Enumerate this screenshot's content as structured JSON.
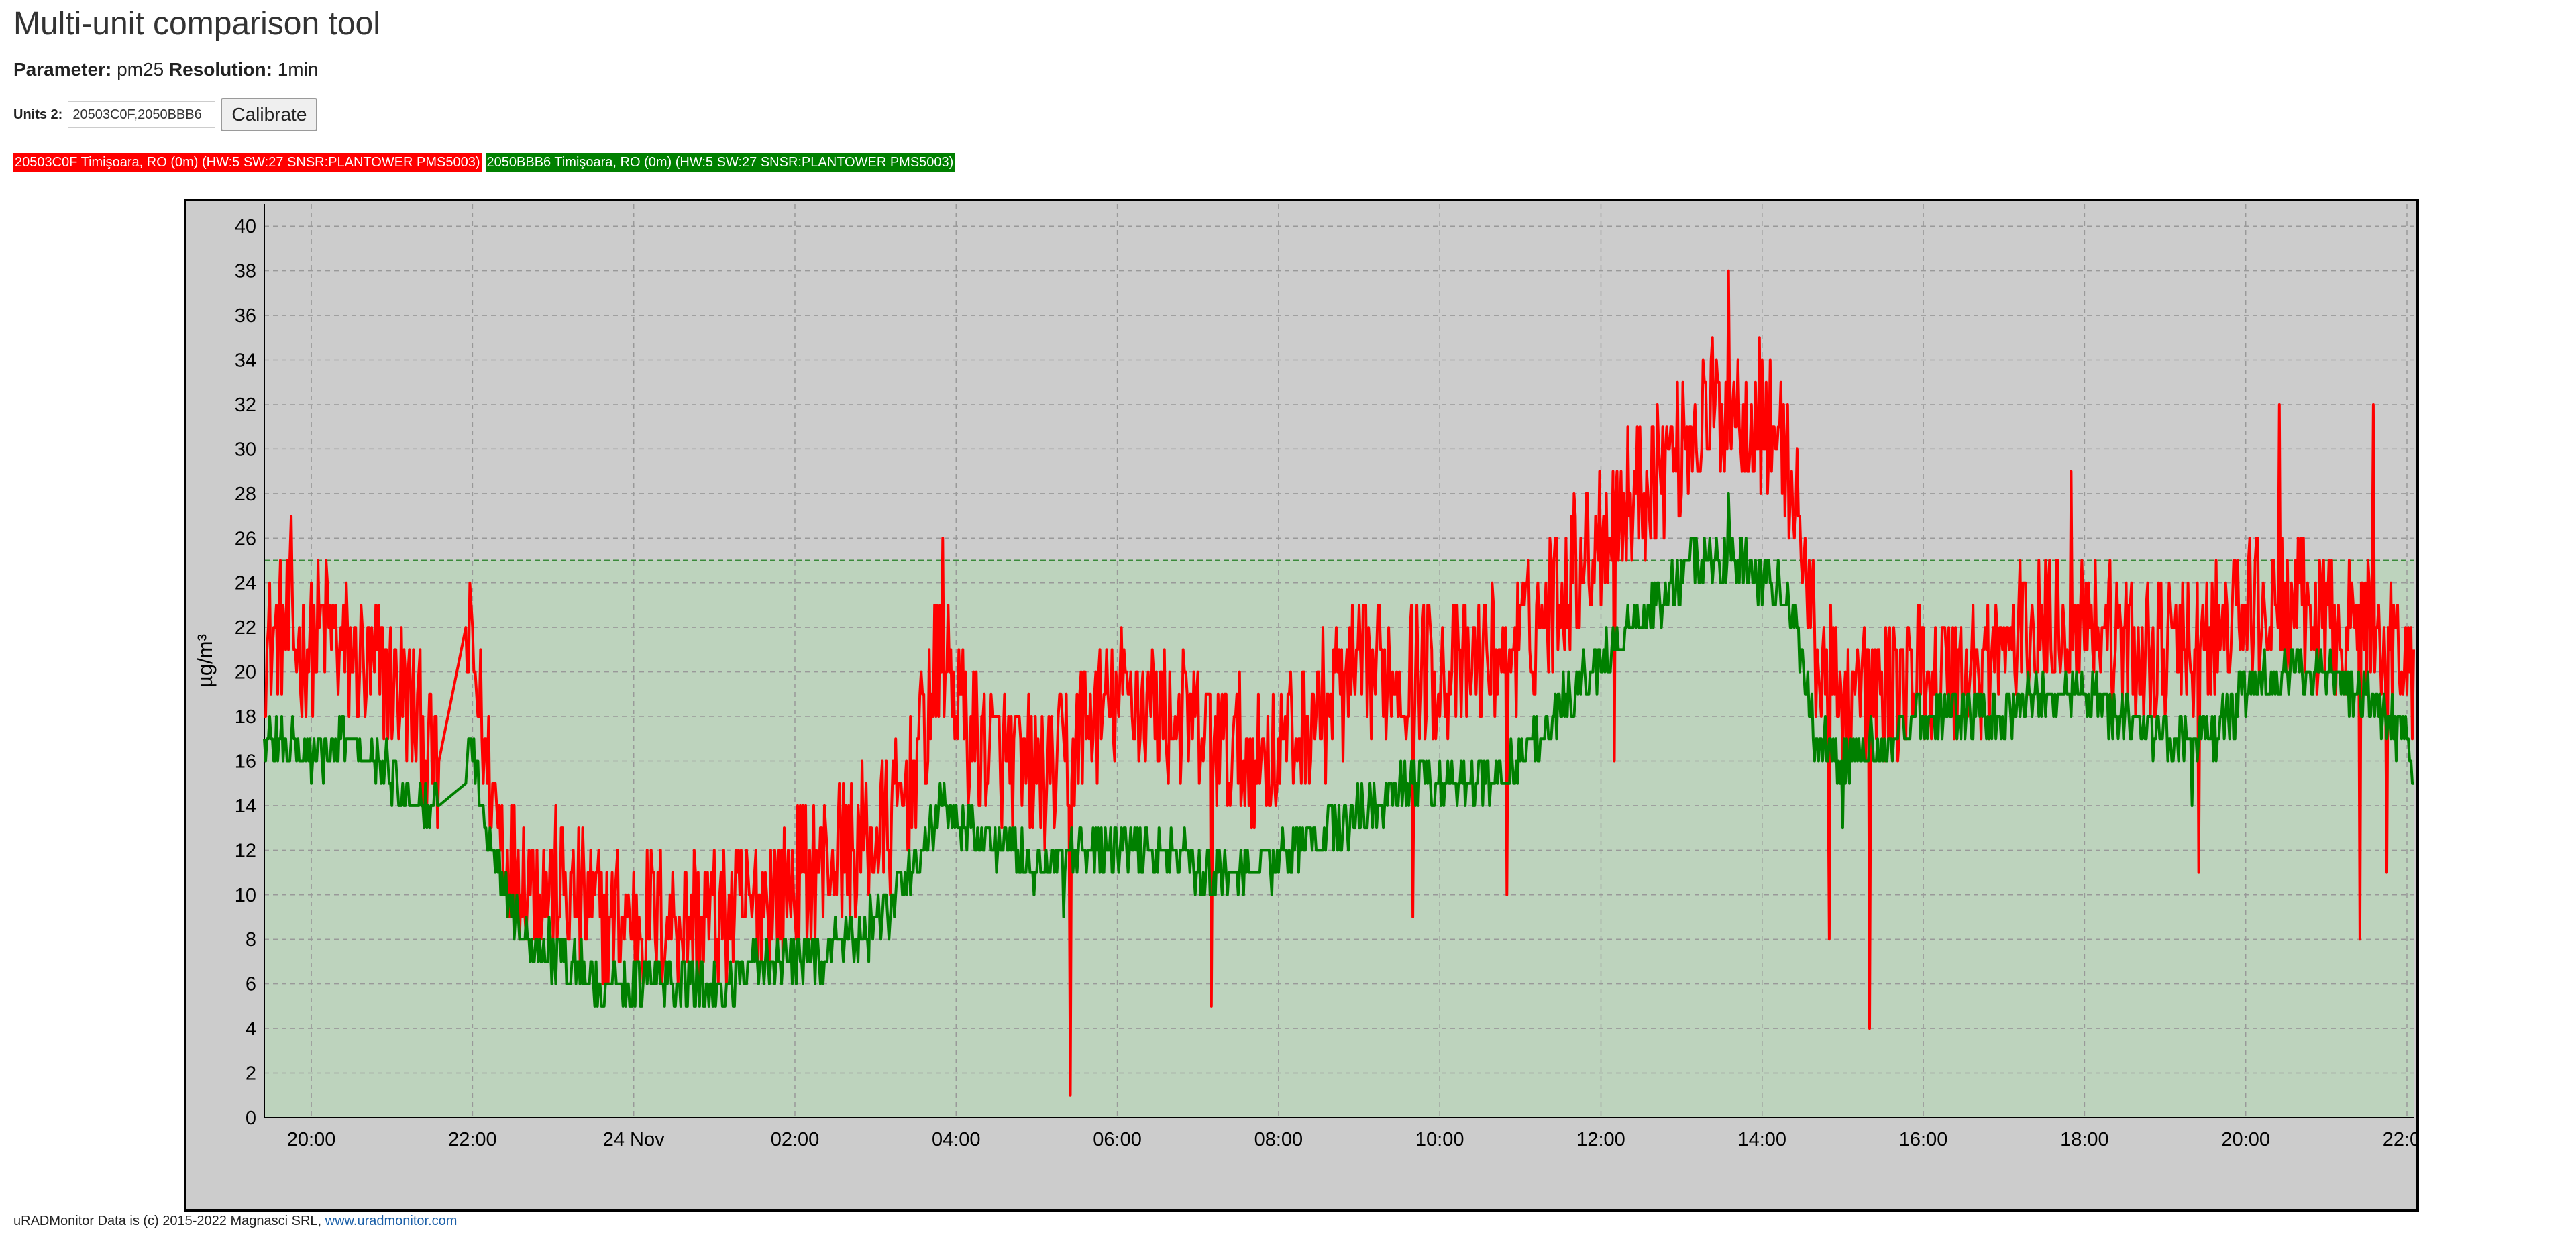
{
  "page": {
    "title": "Multi-unit comparison tool",
    "parameter_label": "Parameter:",
    "parameter_value": "pm25",
    "resolution_label": "Resolution:",
    "resolution_value": "1min",
    "units_label": "Units 2:",
    "units_value": "20503C0F,2050BBB6",
    "calibrate_label": "Calibrate"
  },
  "legend": [
    {
      "label": "20503C0F Timişoara, RO (0m) (HW:5 SW:27 SNSR:PLANTOWER PMS5003)",
      "color": "#ff0000"
    },
    {
      "label": "2050BBB6 Timişoara, RO (0m) (HW:5 SW:27 SNSR:PLANTOWER PMS5003)",
      "color": "#008000"
    }
  ],
  "footer": {
    "text": "uRADMonitor Data is (c) 2015-2022 Magnasci SRL,",
    "link_text": "www.uradmonitor.com"
  },
  "chart_data": {
    "type": "line",
    "ylabel": "µg/m³",
    "ylim": [
      0,
      41
    ],
    "xlim": [
      "2022-11-23 19:25",
      "2022-11-24 22:05"
    ],
    "y_ticks": [
      0,
      2,
      4,
      6,
      8,
      10,
      12,
      14,
      16,
      18,
      20,
      22,
      24,
      26,
      28,
      30,
      32,
      34,
      36,
      38,
      40
    ],
    "x_ticks": [
      {
        "time": "2022-11-23 20:00",
        "label": "20:00"
      },
      {
        "time": "2022-11-23 22:00",
        "label": "22:00"
      },
      {
        "time": "2022-11-24 00:00",
        "label": "24 Nov"
      },
      {
        "time": "2022-11-24 02:00",
        "label": "02:00"
      },
      {
        "time": "2022-11-24 04:00",
        "label": "04:00"
      },
      {
        "time": "2022-11-24 06:00",
        "label": "06:00"
      },
      {
        "time": "2022-11-24 08:00",
        "label": "08:00"
      },
      {
        "time": "2022-11-24 10:00",
        "label": "10:00"
      },
      {
        "time": "2022-11-24 12:00",
        "label": "12:00"
      },
      {
        "time": "2022-11-24 14:00",
        "label": "14:00"
      },
      {
        "time": "2022-11-24 16:00",
        "label": "16:00"
      },
      {
        "time": "2022-11-24 18:00",
        "label": "18:00"
      },
      {
        "time": "2022-11-24 20:00",
        "label": "20:00"
      },
      {
        "time": "2022-11-24 22:00",
        "label": "22:00"
      }
    ],
    "grid": true,
    "threshold_band": {
      "from": 0,
      "to": 25,
      "color": "#bdd3bd"
    },
    "series": [
      {
        "name": "20503C0F Timişoara, RO (0m) (HW:5 SW:27 SNSR:PLANTOWER PMS5003)",
        "color": "#ff0000",
        "points": [
          [
            "2022-11-23 19:25",
            21
          ],
          [
            "2022-11-23 19:40",
            22
          ],
          [
            "2022-11-23 19:55",
            21
          ],
          [
            "2022-11-23 20:10",
            22
          ],
          [
            "2022-11-23 20:25",
            21
          ],
          [
            "2022-11-23 20:40",
            20
          ],
          [
            "2022-11-23 20:55",
            20
          ],
          [
            "2022-11-23 21:10",
            19
          ],
          [
            "2022-11-23 21:25",
            17
          ],
          [
            "2022-11-23 21:35",
            15
          ],
          [
            "2022-11-23 21:55",
            21
          ],
          [
            "2022-11-23 22:00",
            21
          ],
          [
            "2022-11-23 22:10",
            16
          ],
          [
            "2022-11-23 22:25",
            12
          ],
          [
            "2022-11-23 22:45",
            11
          ],
          [
            "2022-11-23 23:10",
            10
          ],
          [
            "2022-11-23 23:40",
            9
          ],
          [
            "2022-11-24 00:10",
            9
          ],
          [
            "2022-11-24 00:40",
            9
          ],
          [
            "2022-11-24 01:10",
            9
          ],
          [
            "2022-11-24 01:40",
            10
          ],
          [
            "2022-11-24 02:10",
            11
          ],
          [
            "2022-11-24 02:40",
            12
          ],
          [
            "2022-11-24 03:10",
            13
          ],
          [
            "2022-11-24 03:25",
            15
          ],
          [
            "2022-11-24 03:50",
            21
          ],
          [
            "2022-11-24 04:10",
            17
          ],
          [
            "2022-11-24 04:40",
            16
          ],
          [
            "2022-11-24 05:10",
            15
          ],
          [
            "2022-11-24 05:40",
            18
          ],
          [
            "2022-11-24 06:10",
            19
          ],
          [
            "2022-11-24 06:40",
            18
          ],
          [
            "2022-11-24 07:10",
            17
          ],
          [
            "2022-11-24 07:40",
            16
          ],
          [
            "2022-11-24 08:10",
            17
          ],
          [
            "2022-11-24 08:40",
            19
          ],
          [
            "2022-11-24 09:10",
            20
          ],
          [
            "2022-11-24 09:40",
            20
          ],
          [
            "2022-11-24 10:10",
            20
          ],
          [
            "2022-11-24 10:40",
            21
          ],
          [
            "2022-11-24 11:10",
            22
          ],
          [
            "2022-11-24 11:40",
            25
          ],
          [
            "2022-11-24 12:10",
            27
          ],
          [
            "2022-11-24 12:40",
            29
          ],
          [
            "2022-11-24 13:10",
            31
          ],
          [
            "2022-11-24 13:40",
            32
          ],
          [
            "2022-11-24 14:10",
            31
          ],
          [
            "2022-11-24 14:25",
            28
          ],
          [
            "2022-11-24 14:40",
            21
          ],
          [
            "2022-11-24 15:00",
            19
          ],
          [
            "2022-11-24 15:30",
            19
          ],
          [
            "2022-11-24 16:00",
            20
          ],
          [
            "2022-11-24 16:30",
            20
          ],
          [
            "2022-11-24 17:00",
            21
          ],
          [
            "2022-11-24 17:30",
            22
          ],
          [
            "2022-11-24 18:00",
            23
          ],
          [
            "2022-11-24 18:30",
            21
          ],
          [
            "2022-11-24 19:00",
            21
          ],
          [
            "2022-11-24 19:30",
            21
          ],
          [
            "2022-11-24 20:00",
            23
          ],
          [
            "2022-11-24 20:30",
            23
          ],
          [
            "2022-11-24 21:00",
            22
          ],
          [
            "2022-11-24 21:30",
            22
          ],
          [
            "2022-11-24 22:00",
            21
          ],
          [
            "2022-11-24 22:05",
            19
          ]
        ],
        "notable_values": [
          [
            "2022-11-23 19:45",
            27
          ],
          [
            "2022-11-24 03:50",
            26
          ],
          [
            "2022-11-24 05:25",
            1
          ],
          [
            "2022-11-24 07:10",
            5
          ],
          [
            "2022-11-24 09:40",
            9
          ],
          [
            "2022-11-24 10:50",
            10
          ],
          [
            "2022-11-24 12:10",
            16
          ],
          [
            "2022-11-24 13:35",
            38
          ],
          [
            "2022-11-24 14:50",
            8
          ],
          [
            "2022-11-24 15:20",
            4
          ],
          [
            "2022-11-24 17:50",
            29
          ],
          [
            "2022-11-24 19:25",
            11
          ],
          [
            "2022-11-24 20:25",
            32
          ],
          [
            "2022-11-24 21:25",
            8
          ],
          [
            "2022-11-24 21:35",
            32
          ],
          [
            "2022-11-24 21:45",
            11
          ]
        ]
      },
      {
        "name": "2050BBB6 Timişoara, RO (0m) (HW:5 SW:27 SNSR:PLANTOWER PMS5003)",
        "color": "#008000",
        "points": [
          [
            "2022-11-23 19:25",
            17
          ],
          [
            "2022-11-23 19:45",
            17
          ],
          [
            "2022-11-23 20:05",
            16
          ],
          [
            "2022-11-23 20:25",
            17
          ],
          [
            "2022-11-23 20:45",
            16
          ],
          [
            "2022-11-23 21:05",
            15
          ],
          [
            "2022-11-23 21:25",
            14
          ],
          [
            "2022-11-23 21:35",
            14
          ],
          [
            "2022-11-23 21:55",
            16
          ],
          [
            "2022-11-23 22:00",
            17
          ],
          [
            "2022-11-23 22:10",
            13
          ],
          [
            "2022-11-23 22:25",
            10
          ],
          [
            "2022-11-23 22:45",
            8
          ],
          [
            "2022-11-23 23:10",
            7
          ],
          [
            "2022-11-23 23:40",
            6
          ],
          [
            "2022-11-24 00:10",
            6
          ],
          [
            "2022-11-24 00:40",
            6
          ],
          [
            "2022-11-24 01:10",
            6
          ],
          [
            "2022-11-24 01:40",
            7
          ],
          [
            "2022-11-24 02:10",
            7
          ],
          [
            "2022-11-24 02:40",
            8
          ],
          [
            "2022-11-24 03:10",
            9
          ],
          [
            "2022-11-24 03:25",
            11
          ],
          [
            "2022-11-24 03:50",
            14
          ],
          [
            "2022-11-24 04:10",
            13
          ],
          [
            "2022-11-24 04:40",
            12
          ],
          [
            "2022-11-24 05:10",
            11
          ],
          [
            "2022-11-24 05:40",
            12
          ],
          [
            "2022-11-24 06:10",
            12
          ],
          [
            "2022-11-24 06:40",
            12
          ],
          [
            "2022-11-24 07:10",
            11
          ],
          [
            "2022-11-24 07:40",
            11
          ],
          [
            "2022-11-24 08:10",
            12
          ],
          [
            "2022-11-24 08:40",
            13
          ],
          [
            "2022-11-24 09:10",
            14
          ],
          [
            "2022-11-24 09:40",
            15
          ],
          [
            "2022-11-24 10:10",
            15
          ],
          [
            "2022-11-24 10:40",
            15
          ],
          [
            "2022-11-24 11:10",
            17
          ],
          [
            "2022-11-24 11:40",
            19
          ],
          [
            "2022-11-24 12:10",
            21
          ],
          [
            "2022-11-24 12:40",
            23
          ],
          [
            "2022-11-24 13:10",
            25
          ],
          [
            "2022-11-24 13:40",
            25
          ],
          [
            "2022-11-24 14:10",
            24
          ],
          [
            "2022-11-24 14:25",
            22
          ],
          [
            "2022-11-24 14:40",
            17
          ],
          [
            "2022-11-24 15:00",
            16
          ],
          [
            "2022-11-24 15:30",
            17
          ],
          [
            "2022-11-24 16:00",
            18
          ],
          [
            "2022-11-24 16:30",
            18
          ],
          [
            "2022-11-24 17:00",
            18
          ],
          [
            "2022-11-24 17:30",
            19
          ],
          [
            "2022-11-24 18:00",
            19
          ],
          [
            "2022-11-24 18:30",
            18
          ],
          [
            "2022-11-24 19:00",
            17
          ],
          [
            "2022-11-24 19:30",
            17
          ],
          [
            "2022-11-24 20:00",
            19
          ],
          [
            "2022-11-24 20:30",
            20
          ],
          [
            "2022-11-24 21:00",
            20
          ],
          [
            "2022-11-24 21:30",
            19
          ],
          [
            "2022-11-24 22:00",
            17
          ],
          [
            "2022-11-24 22:05",
            15
          ]
        ],
        "notable_values": [
          [
            "2022-11-24 13:35",
            28
          ],
          [
            "2022-11-24 05:20",
            9
          ],
          [
            "2022-11-24 15:00",
            13
          ],
          [
            "2022-11-24 19:20",
            14
          ]
        ]
      }
    ]
  }
}
